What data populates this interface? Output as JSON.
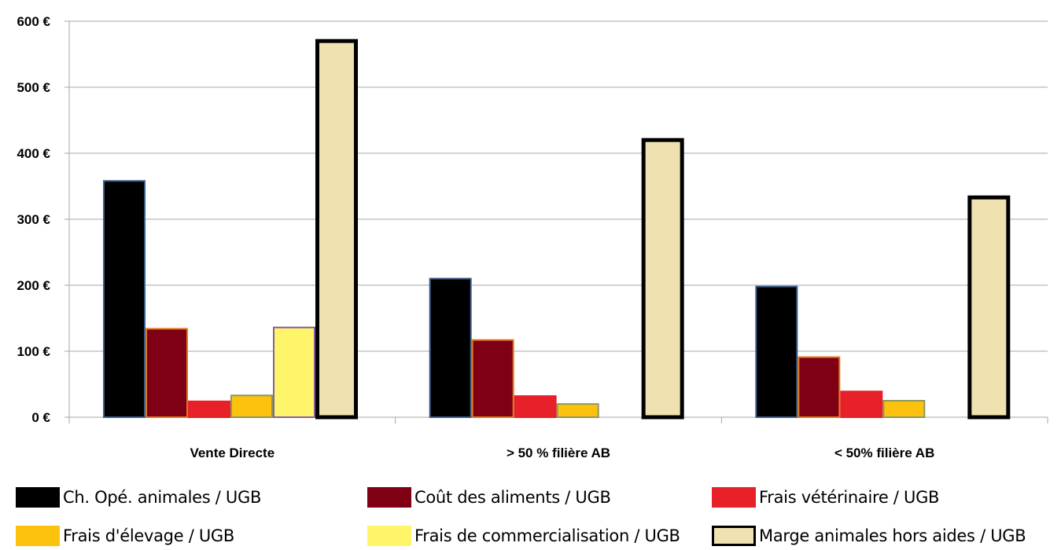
{
  "chart_data": {
    "type": "bar",
    "categories": [
      "Vente Directe",
      ">  50 % filière AB",
      "< 50% filière AB"
    ],
    "series": [
      {
        "name": "Ch. Opé. animales / UGB",
        "values": [
          358,
          210,
          198
        ],
        "color": "#000000",
        "border": "#3c5d8a"
      },
      {
        "name": "Coût des aliments / UGB",
        "values": [
          134,
          117,
          91
        ],
        "color": "#7f0014",
        "border": "#e07a1e"
      },
      {
        "name": "Frais vétérinaire / UGB",
        "values": [
          24,
          32,
          39
        ],
        "color": "#e8202a",
        "border": "#e8202a"
      },
      {
        "name": "Frais d'élevage / UGB",
        "values": [
          33,
          20,
          25
        ],
        "color": "#fdc20e",
        "border": "#8a9a5b"
      },
      {
        "name": "Frais de commercialisation / UGB",
        "values": [
          136,
          null,
          null
        ],
        "color": "#fff56b",
        "border": "#8a5fa0"
      },
      {
        "name": "Marge animales hors aides / UGB",
        "values": [
          570,
          420,
          333
        ],
        "color": "#efe2b0",
        "border": "#000000"
      }
    ],
    "y_ticks": [
      "0 €",
      "100 €",
      "200 €",
      "300 €",
      "400 €",
      "500 €",
      "600 €"
    ],
    "ylim": [
      0,
      600
    ],
    "grid": true,
    "legend_position": "bottom"
  }
}
